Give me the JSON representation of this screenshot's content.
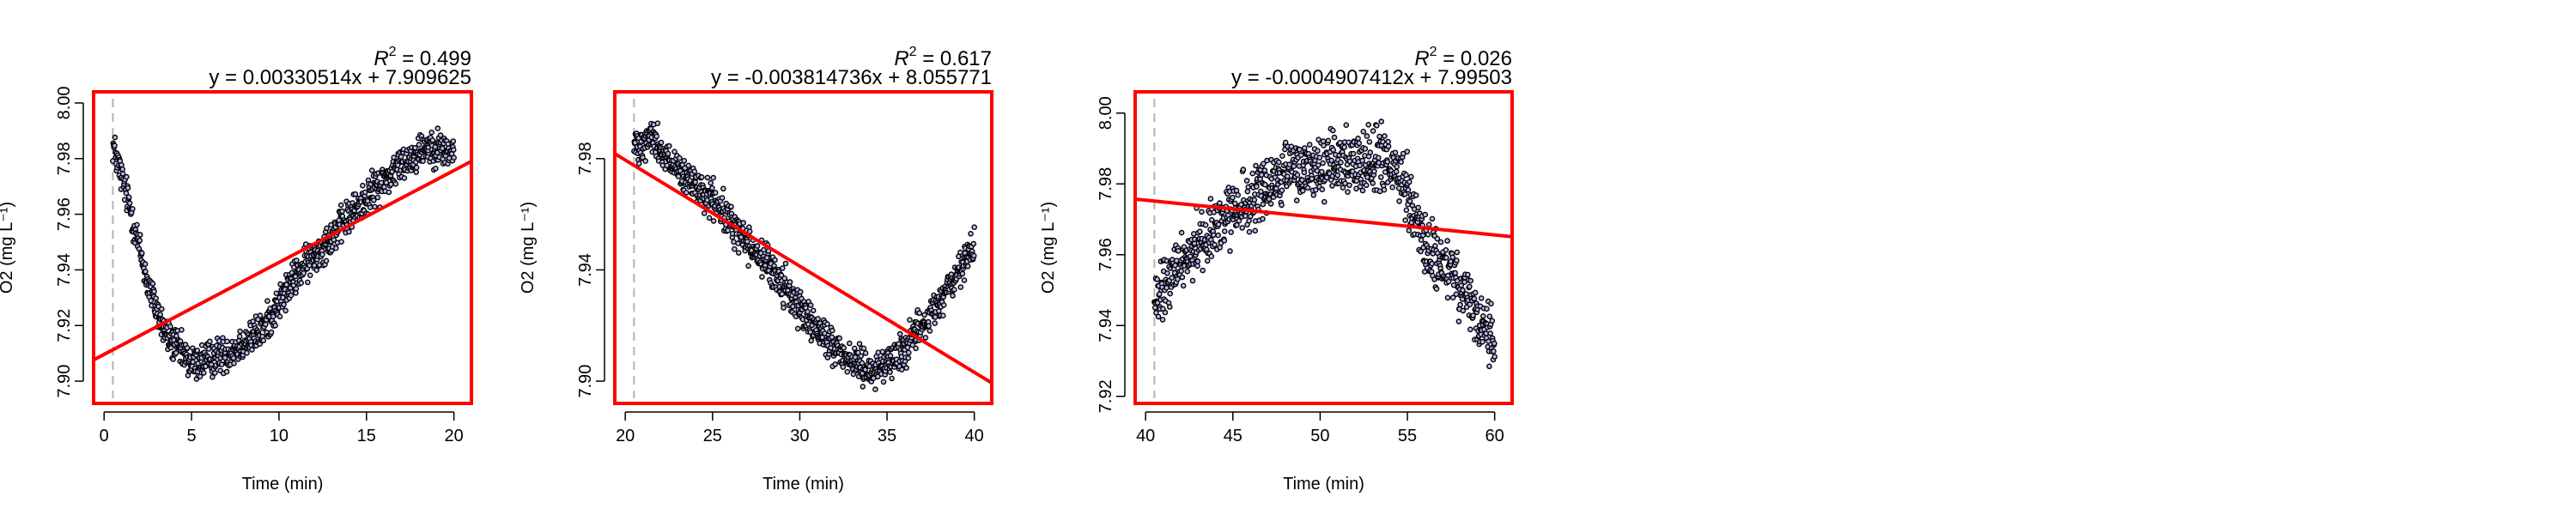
{
  "colors": {
    "frame": "#ff0000",
    "fit_line": "#ff0000",
    "points_stroke": "#000000",
    "points_fill": "#b9b9f0",
    "start_marker": "#b4b4b4",
    "axis": "#000000"
  },
  "chart_data": [
    {
      "type": "scatter",
      "xlabel": "Time (min)",
      "ylabel": "O2 (mg L⁻¹)",
      "r2_label": "R",
      "r2_exp": "2",
      "r2_value": " = 0.499",
      "equation": "y = 0.00330514x + 7.909625",
      "slope": 0.00330514,
      "intercept": 7.909625,
      "xlim": [
        -0.6,
        21.0
      ],
      "ylim": [
        7.892,
        8.004
      ],
      "xticks": [
        "0",
        "5",
        "10",
        "15",
        "20"
      ],
      "xtick_values": [
        0,
        5,
        10,
        15,
        20
      ],
      "yticks": [
        "7.90",
        "7.92",
        "7.94",
        "7.96",
        "7.98",
        "8.00"
      ],
      "ytick_values": [
        7.9,
        7.92,
        7.94,
        7.96,
        7.98,
        8.0
      ],
      "start_marker_x": 0.5,
      "trend": {
        "x": [
          0.5,
          1.5,
          2.5,
          3.5,
          5.0,
          7.0,
          9.0,
          11.0,
          13.0,
          15.0,
          17.0,
          18.5,
          20.0
        ],
        "y": [
          7.985,
          7.962,
          7.935,
          7.917,
          7.906,
          7.91,
          7.918,
          7.938,
          7.952,
          7.966,
          7.978,
          7.985,
          7.982
        ]
      },
      "noise": 0.006
    },
    {
      "type": "scatter",
      "xlabel": "Time (min)",
      "ylabel": "O2 (mg L⁻¹)",
      "r2_label": "R",
      "r2_exp": "2",
      "r2_value": " = 0.617",
      "equation": "y = -0.003814736x + 8.055771",
      "slope": -0.003814736,
      "intercept": 8.055771,
      "xlim": [
        19.4,
        41.0
      ],
      "ylim": [
        7.892,
        8.004
      ],
      "xticks": [
        "20",
        "25",
        "30",
        "35",
        "40"
      ],
      "xtick_values": [
        20,
        25,
        30,
        35,
        40
      ],
      "yticks": [
        "7.90",
        "7.94",
        "7.98"
      ],
      "ytick_values": [
        7.9,
        7.94,
        7.98
      ],
      "start_marker_x": 20.5,
      "trend": {
        "x": [
          20.5,
          21.5,
          23.0,
          25.0,
          27.0,
          29.0,
          31.0,
          33.0,
          34.5,
          36.0,
          37.5,
          39.0,
          40.0
        ],
        "y": [
          7.985,
          7.988,
          7.975,
          7.965,
          7.95,
          7.935,
          7.918,
          7.907,
          7.904,
          7.912,
          7.924,
          7.938,
          7.948
        ]
      },
      "noise": 0.006
    },
    {
      "type": "scatter",
      "xlabel": "Time (min)",
      "ylabel": "O2 (mg L⁻¹)",
      "r2_label": "R",
      "r2_exp": "2",
      "r2_value": " = 0.026",
      "equation": "y = -0.0004907412x + 7.99503",
      "slope": -0.0004907412,
      "intercept": 7.99503,
      "xlim": [
        39.4,
        61.0
      ],
      "ylim": [
        7.918,
        8.006
      ],
      "xticks": [
        "40",
        "45",
        "50",
        "55",
        "60"
      ],
      "xtick_values": [
        40,
        45,
        50,
        55,
        60
      ],
      "yticks": [
        "7.92",
        "7.94",
        "7.96",
        "7.98",
        "8.00"
      ],
      "ytick_values": [
        7.92,
        7.94,
        7.96,
        7.98,
        8.0
      ],
      "start_marker_x": 40.5,
      "trend": {
        "x": [
          40.5,
          42.0,
          44.0,
          46.0,
          48.0,
          50.0,
          52.0,
          53.5,
          55.0,
          56.0,
          57.5,
          59.0,
          60.0
        ],
        "y": [
          7.945,
          7.958,
          7.968,
          7.975,
          7.983,
          7.985,
          7.986,
          7.988,
          7.978,
          7.962,
          7.955,
          7.942,
          7.935
        ]
      },
      "noise": 0.008
    }
  ]
}
